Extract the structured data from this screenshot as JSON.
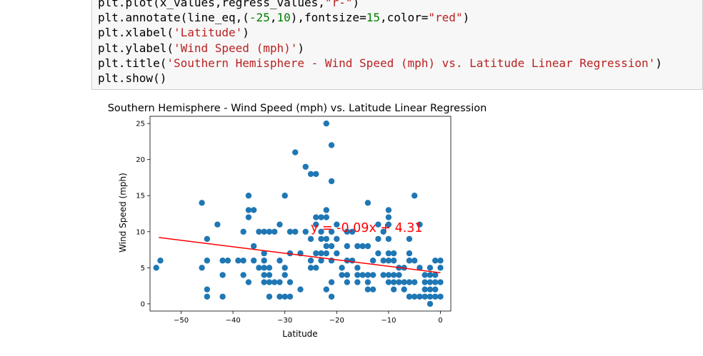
{
  "code_lines": [
    [
      {
        "t": "plt.plot(x_values,regress_values,",
        "c": "n"
      },
      {
        "t": "\"r-\"",
        "c": "s"
      },
      {
        "t": ")",
        "c": "n"
      }
    ],
    [
      {
        "t": "plt.annotate(line_eq,(",
        "c": "n"
      },
      {
        "t": "-25",
        "c": "d"
      },
      {
        "t": ",",
        "c": "n"
      },
      {
        "t": "10",
        "c": "d"
      },
      {
        "t": "),fontsize=",
        "c": "n"
      },
      {
        "t": "15",
        "c": "d"
      },
      {
        "t": ",color=",
        "c": "n"
      },
      {
        "t": "\"red\"",
        "c": "s"
      },
      {
        "t": ")",
        "c": "n"
      }
    ],
    [
      {
        "t": "plt.xlabel(",
        "c": "n"
      },
      {
        "t": "'Latitude'",
        "c": "s"
      },
      {
        "t": ")",
        "c": "n"
      }
    ],
    [
      {
        "t": "plt.ylabel(",
        "c": "n"
      },
      {
        "t": "'Wind Speed (mph)'",
        "c": "s"
      },
      {
        "t": ")",
        "c": "n"
      }
    ],
    [
      {
        "t": "plt.title(",
        "c": "n"
      },
      {
        "t": "'Southern Hemisphere - Wind Speed (mph) vs. Latitude Linear Regression'",
        "c": "s"
      },
      {
        "t": ")",
        "c": "n"
      }
    ],
    [
      {
        "t": "plt.show()",
        "c": "n"
      }
    ]
  ],
  "colors": {
    "string": "#ba2121",
    "number": "#008000",
    "marker": "#1f77b4",
    "regression": "#ff0000"
  },
  "chart_data": {
    "type": "scatter",
    "title": "Southern Hemisphere - Wind Speed (mph) vs. Latitude Linear Regression",
    "xlabel": "Latitude",
    "ylabel": "Wind Speed (mph)",
    "xlim": [
      -56,
      2
    ],
    "ylim": [
      -1,
      26
    ],
    "xticks": [
      -50,
      -40,
      -30,
      -20,
      -10,
      0
    ],
    "yticks": [
      0,
      5,
      10,
      15,
      20,
      25
    ],
    "grid": false,
    "annotation": {
      "text": "y = -0.09x + 4.31",
      "x": -25,
      "y": 10,
      "color": "#ff0000"
    },
    "regression": {
      "slope": -0.09,
      "intercept": 4.31,
      "x_range": [
        -54.3,
        0
      ]
    },
    "points": [
      [
        -54.8,
        5
      ],
      [
        -54,
        6
      ],
      [
        -46,
        14
      ],
      [
        -46,
        5
      ],
      [
        -45,
        9
      ],
      [
        -45,
        6
      ],
      [
        -45,
        2
      ],
      [
        -45,
        1
      ],
      [
        -43,
        11
      ],
      [
        -42,
        6
      ],
      [
        -42,
        4
      ],
      [
        -42,
        1
      ],
      [
        -41,
        6
      ],
      [
        -39,
        6
      ],
      [
        -38,
        10
      ],
      [
        -38,
        6
      ],
      [
        -38,
        4
      ],
      [
        -37,
        15
      ],
      [
        -37,
        13
      ],
      [
        -37,
        12
      ],
      [
        -37,
        3
      ],
      [
        -36,
        13
      ],
      [
        -36,
        8
      ],
      [
        -36,
        6
      ],
      [
        -35,
        10
      ],
      [
        -35,
        5
      ],
      [
        -34,
        10
      ],
      [
        -34,
        7
      ],
      [
        -34,
        6
      ],
      [
        -34,
        5
      ],
      [
        -34,
        4
      ],
      [
        -34,
        3
      ],
      [
        -33,
        10
      ],
      [
        -33,
        5
      ],
      [
        -33,
        4
      ],
      [
        -33,
        3
      ],
      [
        -33,
        1
      ],
      [
        -32,
        10
      ],
      [
        -32,
        3
      ],
      [
        -31,
        11
      ],
      [
        -31,
        6
      ],
      [
        -31,
        3
      ],
      [
        -31,
        1
      ],
      [
        -30,
        15
      ],
      [
        -30,
        5
      ],
      [
        -30,
        4
      ],
      [
        -30,
        1
      ],
      [
        -29,
        10
      ],
      [
        -29,
        7
      ],
      [
        -29,
        3
      ],
      [
        -29,
        1
      ],
      [
        -28,
        21
      ],
      [
        -28,
        10
      ],
      [
        -27,
        7
      ],
      [
        -27,
        2
      ],
      [
        -26,
        19
      ],
      [
        -26,
        10
      ],
      [
        -25,
        18
      ],
      [
        -25,
        9
      ],
      [
        -25,
        6
      ],
      [
        -25,
        5
      ],
      [
        -24,
        18
      ],
      [
        -24,
        12
      ],
      [
        -24,
        11
      ],
      [
        -24,
        7
      ],
      [
        -24,
        5
      ],
      [
        -23,
        12
      ],
      [
        -23,
        10
      ],
      [
        -23,
        9
      ],
      [
        -23,
        7
      ],
      [
        -23,
        6
      ],
      [
        -22,
        25
      ],
      [
        -22,
        13
      ],
      [
        -22,
        12
      ],
      [
        -22,
        9
      ],
      [
        -22,
        8
      ],
      [
        -22,
        7
      ],
      [
        -22,
        2
      ],
      [
        -21,
        22
      ],
      [
        -21,
        17
      ],
      [
        -21,
        10
      ],
      [
        -21,
        8
      ],
      [
        -21,
        6
      ],
      [
        -21,
        3
      ],
      [
        -21,
        1
      ],
      [
        -20,
        11
      ],
      [
        -20,
        9
      ],
      [
        -20,
        7
      ],
      [
        -19,
        5
      ],
      [
        -19,
        4
      ],
      [
        -18,
        10
      ],
      [
        -18,
        8
      ],
      [
        -18,
        6
      ],
      [
        -18,
        4
      ],
      [
        -18,
        3
      ],
      [
        -17,
        10
      ],
      [
        -17,
        6
      ],
      [
        -16,
        8
      ],
      [
        -16,
        5
      ],
      [
        -16,
        4
      ],
      [
        -16,
        3
      ],
      [
        -15,
        8
      ],
      [
        -15,
        4
      ],
      [
        -14,
        14
      ],
      [
        -14,
        8
      ],
      [
        -14,
        4
      ],
      [
        -14,
        3
      ],
      [
        -14,
        2
      ],
      [
        -13,
        6
      ],
      [
        -13,
        4
      ],
      [
        -13,
        2
      ],
      [
        -12,
        11
      ],
      [
        -12,
        9
      ],
      [
        -12,
        7
      ],
      [
        -11,
        10
      ],
      [
        -11,
        6
      ],
      [
        -11,
        4
      ],
      [
        -10,
        13
      ],
      [
        -10,
        12
      ],
      [
        -10,
        11
      ],
      [
        -10,
        9
      ],
      [
        -10,
        7
      ],
      [
        -10,
        6
      ],
      [
        -10,
        4
      ],
      [
        -10,
        3
      ],
      [
        -9,
        7
      ],
      [
        -9,
        6
      ],
      [
        -9,
        4
      ],
      [
        -9,
        3
      ],
      [
        -9,
        2
      ],
      [
        -8,
        5
      ],
      [
        -8,
        4
      ],
      [
        -8,
        3
      ],
      [
        -7,
        5
      ],
      [
        -7,
        3
      ],
      [
        -7,
        2
      ],
      [
        -6,
        9
      ],
      [
        -6,
        7
      ],
      [
        -6,
        6
      ],
      [
        -6,
        3
      ],
      [
        -6,
        1
      ],
      [
        -5,
        15
      ],
      [
        -5,
        6
      ],
      [
        -5,
        3
      ],
      [
        -5,
        1
      ],
      [
        -4,
        11
      ],
      [
        -4,
        5
      ],
      [
        -4,
        1
      ],
      [
        -3,
        4
      ],
      [
        -3,
        3
      ],
      [
        -3,
        2
      ],
      [
        -3,
        1
      ],
      [
        -2,
        5
      ],
      [
        -2,
        4
      ],
      [
        -2,
        3
      ],
      [
        -2,
        2
      ],
      [
        -2,
        1
      ],
      [
        -2,
        0
      ],
      [
        -1,
        6
      ],
      [
        -1,
        4
      ],
      [
        -1,
        3
      ],
      [
        -1,
        2
      ],
      [
        -1,
        1
      ],
      [
        0,
        6
      ],
      [
        0,
        5
      ],
      [
        0,
        3
      ],
      [
        0,
        1
      ]
    ]
  }
}
